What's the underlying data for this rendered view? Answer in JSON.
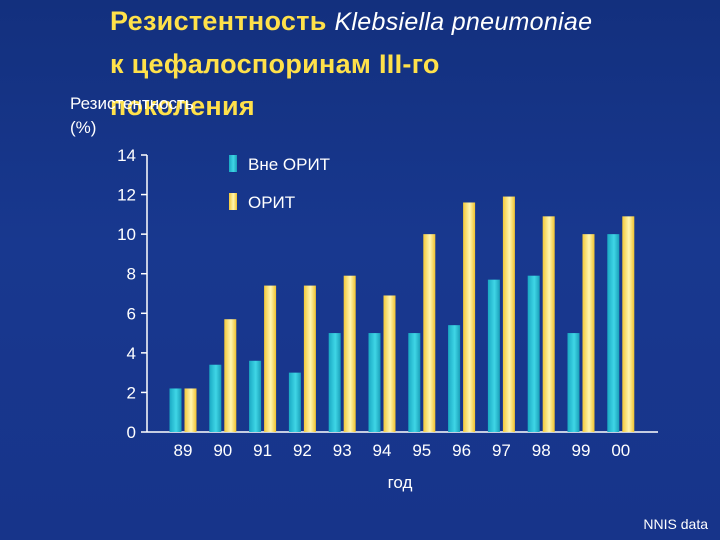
{
  "header": {
    "title_part1": "Резистентность",
    "title_latin": "Klebsiella pneumoniae",
    "title_line2": "к цефалоспоринам III-го",
    "title_line3": "поколения"
  },
  "source_note": "NNIS data",
  "colors": {
    "series1": "#29c4d6",
    "series2": "#ffe15c",
    "axis": "#ffffff",
    "title": "#ffe14a"
  },
  "chart_data": {
    "type": "bar",
    "title": "Резистентность Klebsiella pneumoniae к цефалоспоринам III-го поколения",
    "ylabel_line1": "Резистентность",
    "ylabel_line2": "(%)",
    "xlabel": "год",
    "categories": [
      "89",
      "90",
      "91",
      "92",
      "93",
      "94",
      "95",
      "96",
      "97",
      "98",
      "99",
      "00"
    ],
    "ylim": [
      0,
      14
    ],
    "yticks": [
      0,
      2,
      4,
      6,
      8,
      10,
      12,
      14
    ],
    "legend_position": "top-left",
    "series": [
      {
        "name": "Вне ОРИТ",
        "values": [
          2.2,
          3.4,
          3.6,
          3.0,
          5.0,
          5.0,
          5.0,
          5.4,
          7.7,
          7.9,
          5.0,
          10.0
        ]
      },
      {
        "name": "ОРИТ",
        "values": [
          2.2,
          5.7,
          7.4,
          7.4,
          7.9,
          6.9,
          10.0,
          11.6,
          11.9,
          10.9,
          10.0,
          10.9
        ]
      }
    ]
  }
}
